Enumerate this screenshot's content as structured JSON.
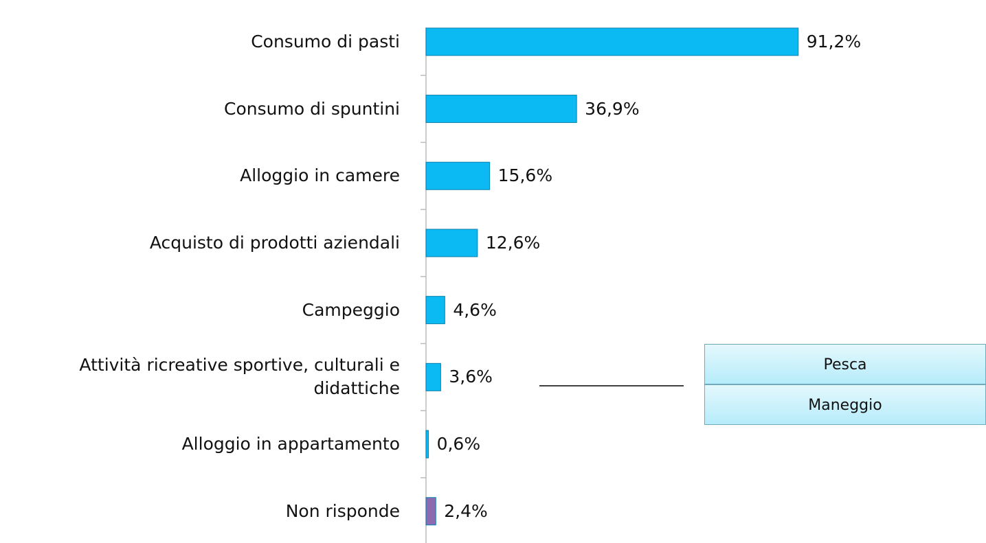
{
  "chart_data": {
    "type": "hbar",
    "categories": [
      "Consumo di pasti",
      "Consumo di spuntini",
      "Alloggio in camere",
      "Acquisto di prodotti aziendali",
      "Campeggio",
      "Attività ricreative sportive, culturali e didattiche",
      "Alloggio in appartamento",
      "Non risponde"
    ],
    "values": [
      91.2,
      36.9,
      15.6,
      12.6,
      4.6,
      3.6,
      0.6,
      2.4
    ],
    "value_labels": [
      "91,2%",
      "36,9%",
      "15,6%",
      "12,6%",
      "4,6%",
      "3,6%",
      "0,6%",
      "2,4%"
    ],
    "colors": [
      "#0bb9f3",
      "#0bb9f3",
      "#0bb9f3",
      "#0bb9f3",
      "#0bb9f3",
      "#0bb9f3",
      "#0bb9f3",
      "#8c6bb1"
    ],
    "callout": [
      "Pesca",
      "Maneggio"
    ]
  }
}
